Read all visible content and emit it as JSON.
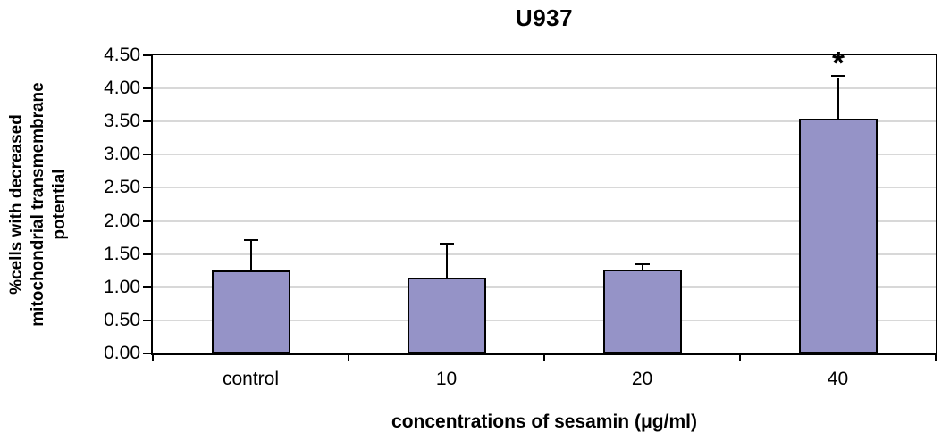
{
  "chart_data": {
    "type": "bar",
    "title": "U937",
    "xlabel": "concentrations of sesamin (μg/ml)",
    "ylabel": "%cells with decreased mitochondrial transmembrane potential",
    "ylabel_lines": [
      "%cells with decreased",
      "mitochondrial transmembrane",
      "potential"
    ],
    "categories": [
      "control",
      "10",
      "20",
      "40"
    ],
    "values": [
      1.25,
      1.15,
      1.27,
      3.55
    ],
    "error_plus": [
      0.45,
      0.5,
      0.07,
      0.62
    ],
    "annotations": [
      {
        "category_index": 3,
        "text": "*"
      }
    ],
    "ylim": [
      0,
      4.5
    ],
    "ytick_step": 0.5,
    "ytick_labels": [
      "0.00",
      "0.50",
      "1.00",
      "1.50",
      "2.00",
      "2.50",
      "3.00",
      "3.50",
      "4.00",
      "4.50"
    ],
    "grid": true,
    "legend": "none",
    "colors": {
      "bar_fill": "#9593C7",
      "bar_border": "#000000",
      "gridline": "#D8D8D8",
      "axis": "#000000",
      "text": "#000000",
      "background": "#FFFFFF"
    }
  }
}
